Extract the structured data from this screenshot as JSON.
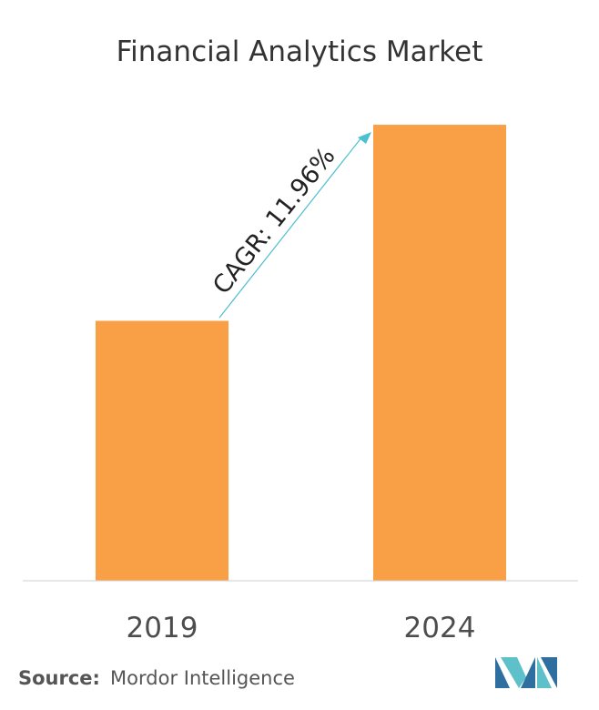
{
  "chart_data": {
    "type": "bar",
    "title": "Financial Analytics Market",
    "categories": [
      "2019",
      "2024"
    ],
    "values": [
      0.57,
      1.0
    ],
    "xlabel": "",
    "ylabel": "",
    "ylim": [
      0,
      1.05
    ],
    "grid": false,
    "legend": "none",
    "annotation": "CAGR: 11.96%",
    "bar_color": "#f9a046",
    "arrow_color": "#4cbfd0"
  },
  "source": {
    "label": "Source:",
    "text": "Mordor Intelligence"
  },
  "logo": {
    "name": "mordor-intelligence-logo-icon",
    "colors": [
      "#2f6f9f",
      "#5ec1c9"
    ]
  }
}
